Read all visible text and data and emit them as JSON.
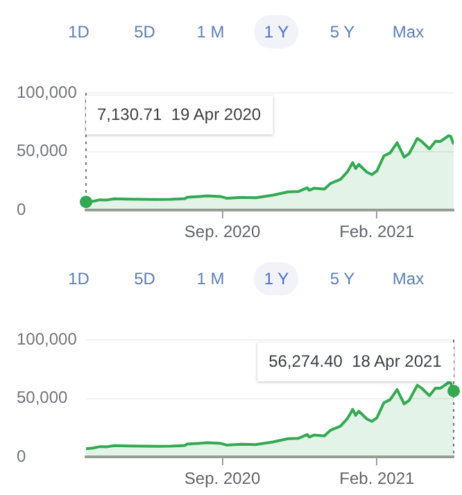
{
  "chart_data": [
    {
      "type": "area",
      "annotations": [
        "1D",
        "5D",
        "1 M",
        "1 Y",
        "5 Y",
        "Max",
        "7,130.71  19 Apr 2020"
      ],
      "x": [
        "2020-04-19",
        "2020-04-26",
        "2020-05-03",
        "2020-05-10",
        "2020-05-17",
        "2020-05-31",
        "2020-06-14",
        "2020-06-28",
        "2020-07-12",
        "2020-07-26",
        "2020-07-28",
        "2020-08-09",
        "2020-08-17",
        "2020-08-30",
        "2020-09-05",
        "2020-09-20",
        "2020-10-04",
        "2020-10-21",
        "2020-11-05",
        "2020-11-15",
        "2020-11-24",
        "2020-11-26",
        "2020-12-01",
        "2020-12-11",
        "2020-12-17",
        "2020-12-27",
        "2021-01-03",
        "2021-01-08",
        "2021-01-11",
        "2021-01-14",
        "2021-01-22",
        "2021-01-27",
        "2021-02-01",
        "2021-02-08",
        "2021-02-14",
        "2021-02-21",
        "2021-02-28",
        "2021-03-05",
        "2021-03-13",
        "2021-03-17",
        "2021-03-25",
        "2021-03-31",
        "2021-04-05",
        "2021-04-13",
        "2021-04-15",
        "2021-04-18"
      ],
      "series": [
        {
          "color": "#34a853",
          "values": [
            7130.71,
            7700,
            8900,
            8750,
            9700,
            9450,
            9350,
            9100,
            9250,
            9900,
            11000,
            11700,
            12300,
            11700,
            10200,
            10900,
            10650,
            12800,
            15600,
            15900,
            19100,
            17000,
            18800,
            18000,
            22800,
            26300,
            33000,
            40600,
            35500,
            39100,
            32500,
            30400,
            33500,
            46400,
            48800,
            57500,
            45200,
            48400,
            61200,
            58900,
            52300,
            58800,
            58700,
            63500,
            63100,
            56274.4
          ]
        }
      ],
      "xlim": [
        "2020-04-19",
        "2021-04-18"
      ],
      "xticks": [
        {
          "value": "2020-09-01",
          "label": "Sep. 2020"
        },
        {
          "value": "2021-02-01",
          "label": "Feb. 2021"
        }
      ],
      "ylim": [
        0,
        100000
      ],
      "yticks": [
        {
          "value": 0,
          "label": "0"
        },
        {
          "value": 50000,
          "label": "50,000"
        },
        {
          "value": 100000,
          "label": "100,000"
        }
      ],
      "grid": "y",
      "ref_lines": [
        {
          "axis": "x",
          "value": "2020-04-19",
          "color": "#757575",
          "line_style": "dotted"
        }
      ]
    },
    {
      "type": "area",
      "annotations": [
        "1D",
        "5D",
        "1 M",
        "1 Y",
        "5 Y",
        "Max",
        "56,274.40  18 Apr 2021"
      ],
      "x": [
        "2020-04-19",
        "2020-04-26",
        "2020-05-03",
        "2020-05-10",
        "2020-05-17",
        "2020-05-31",
        "2020-06-14",
        "2020-06-28",
        "2020-07-12",
        "2020-07-26",
        "2020-07-28",
        "2020-08-09",
        "2020-08-17",
        "2020-08-30",
        "2020-09-05",
        "2020-09-20",
        "2020-10-04",
        "2020-10-21",
        "2020-11-05",
        "2020-11-15",
        "2020-11-24",
        "2020-11-26",
        "2020-12-01",
        "2020-12-11",
        "2020-12-17",
        "2020-12-27",
        "2021-01-03",
        "2021-01-08",
        "2021-01-11",
        "2021-01-14",
        "2021-01-22",
        "2021-01-27",
        "2021-02-01",
        "2021-02-08",
        "2021-02-14",
        "2021-02-21",
        "2021-02-28",
        "2021-03-05",
        "2021-03-13",
        "2021-03-17",
        "2021-03-25",
        "2021-03-31",
        "2021-04-05",
        "2021-04-13",
        "2021-04-15",
        "2021-04-18"
      ],
      "series": [
        {
          "color": "#34a853",
          "values": [
            7130.71,
            7700,
            8900,
            8750,
            9700,
            9450,
            9350,
            9100,
            9250,
            9900,
            11000,
            11700,
            12300,
            11700,
            10200,
            10900,
            10650,
            12800,
            15600,
            15900,
            19100,
            17000,
            18800,
            18000,
            22800,
            26300,
            33000,
            40600,
            35500,
            39100,
            32500,
            30400,
            33500,
            46400,
            48800,
            57500,
            45200,
            48400,
            61200,
            58900,
            52300,
            58800,
            58700,
            63500,
            63100,
            56274.4
          ]
        }
      ],
      "xlim": [
        "2020-04-19",
        "2021-04-18"
      ],
      "xticks": [
        {
          "value": "2020-09-01",
          "label": "Sep. 2020"
        },
        {
          "value": "2021-02-01",
          "label": "Feb. 2021"
        }
      ],
      "ylim": [
        0,
        100000
      ],
      "yticks": [
        {
          "value": 0,
          "label": "0"
        },
        {
          "value": 50000,
          "label": "50,000"
        },
        {
          "value": 100000,
          "label": "100,000"
        }
      ],
      "grid": "y",
      "ref_lines": [
        {
          "axis": "x",
          "value": "2021-04-18",
          "color": "#757575",
          "line_style": "dotted"
        }
      ]
    }
  ]
}
